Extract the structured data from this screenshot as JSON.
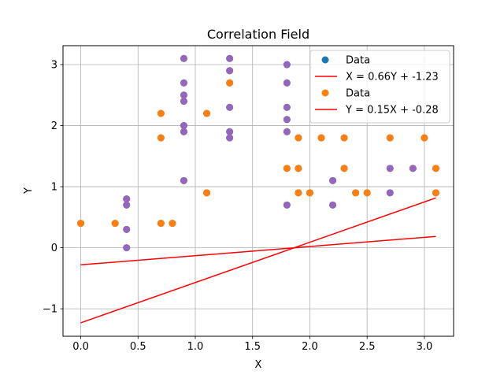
{
  "chart_data": {
    "type": "scatter",
    "title": "Correlation Field",
    "xlabel": "X",
    "ylabel": "Y",
    "xlim": [
      -0.155,
      3.255
    ],
    "ylim": [
      -1.45,
      3.31
    ],
    "xticks": [
      0.0,
      0.5,
      1.0,
      1.5,
      2.0,
      2.5,
      3.0
    ],
    "xtick_labels": [
      "0.0",
      "0.5",
      "1.0",
      "1.5",
      "2.0",
      "2.5",
      "3.0"
    ],
    "yticks": [
      -1,
      0,
      1,
      2,
      3
    ],
    "ytick_labels": [
      "−1",
      "0",
      "1",
      "2",
      "3"
    ],
    "grid": true,
    "legend_position": "upper right",
    "colors": {
      "series_blue": "#1f77b4",
      "series_orange": "#ff7f0e",
      "overlap_purple": "#9467bd",
      "fit_line": "#ff0000"
    },
    "series": [
      {
        "name": "Data",
        "kind": "scatter",
        "color": "#1f77b4",
        "points": [
          [
            0.0,
            0.4
          ],
          [
            0.3,
            0.4
          ],
          [
            0.4,
            0.0
          ],
          [
            0.4,
            0.3
          ],
          [
            0.4,
            0.7
          ],
          [
            0.4,
            0.8
          ],
          [
            0.7,
            0.4
          ],
          [
            0.7,
            1.8
          ],
          [
            0.7,
            2.2
          ],
          [
            0.8,
            0.4
          ],
          [
            0.9,
            1.1
          ],
          [
            0.9,
            1.9
          ],
          [
            0.9,
            2.0
          ],
          [
            0.9,
            2.4
          ],
          [
            0.9,
            2.5
          ],
          [
            0.9,
            2.7
          ],
          [
            0.9,
            3.1
          ],
          [
            1.1,
            0.9
          ],
          [
            1.1,
            2.2
          ],
          [
            1.3,
            1.8
          ],
          [
            1.3,
            1.9
          ],
          [
            1.3,
            2.3
          ],
          [
            1.3,
            2.7
          ],
          [
            1.3,
            2.9
          ],
          [
            1.3,
            3.1
          ],
          [
            1.8,
            0.7
          ],
          [
            1.8,
            1.3
          ],
          [
            1.8,
            1.9
          ],
          [
            1.8,
            2.1
          ],
          [
            1.8,
            2.3
          ],
          [
            1.8,
            2.7
          ],
          [
            1.8,
            3.0
          ],
          [
            1.9,
            0.9
          ],
          [
            1.9,
            1.3
          ],
          [
            1.9,
            1.8
          ],
          [
            2.0,
            0.9
          ],
          [
            2.1,
            1.8
          ],
          [
            2.2,
            0.7
          ],
          [
            2.2,
            1.1
          ],
          [
            2.3,
            1.3
          ],
          [
            2.3,
            1.8
          ],
          [
            2.4,
            0.9
          ],
          [
            2.5,
            0.9
          ],
          [
            2.7,
            0.9
          ],
          [
            2.7,
            1.3
          ],
          [
            2.7,
            1.8
          ],
          [
            2.9,
            1.3
          ],
          [
            3.0,
            1.8
          ],
          [
            3.1,
            0.9
          ],
          [
            3.1,
            1.3
          ]
        ]
      },
      {
        "name": "X = 0.66Y + -1.23",
        "kind": "line",
        "color": "#ff0000",
        "x": [
          0.0,
          3.1
        ],
        "y": [
          -1.23,
          0.816
        ]
      },
      {
        "name": "Data",
        "kind": "scatter",
        "color": "#ff7f0e",
        "points": [
          [
            0.0,
            0.4
          ],
          [
            0.3,
            0.4
          ],
          [
            0.7,
            0.4
          ],
          [
            0.7,
            1.8
          ],
          [
            0.7,
            2.2
          ],
          [
            0.8,
            0.4
          ],
          [
            1.1,
            0.9
          ],
          [
            1.1,
            2.2
          ],
          [
            1.3,
            2.7
          ],
          [
            1.3,
            2.9
          ],
          [
            1.8,
            1.3
          ],
          [
            1.9,
            0.9
          ],
          [
            1.9,
            1.3
          ],
          [
            1.9,
            1.8
          ],
          [
            2.0,
            0.9
          ],
          [
            2.1,
            1.8
          ],
          [
            2.3,
            1.3
          ],
          [
            2.3,
            1.8
          ],
          [
            2.4,
            0.9
          ],
          [
            2.5,
            0.9
          ],
          [
            2.7,
            1.8
          ],
          [
            2.9,
            1.3
          ],
          [
            3.0,
            1.8
          ],
          [
            3.1,
            0.9
          ],
          [
            3.1,
            1.3
          ]
        ]
      },
      {
        "name": "Y = 0.15X + -0.28",
        "kind": "line",
        "color": "#ff0000",
        "x": [
          0.0,
          3.1
        ],
        "y": [
          -0.28,
          0.185
        ]
      },
      {
        "name": "",
        "kind": "scatter",
        "legend": false,
        "color": "#9467bd",
        "points": [
          [
            0.4,
            0.0
          ],
          [
            0.4,
            0.3
          ],
          [
            0.4,
            0.7
          ],
          [
            0.4,
            0.8
          ],
          [
            0.9,
            1.1
          ],
          [
            0.9,
            1.9
          ],
          [
            0.9,
            2.0
          ],
          [
            0.9,
            2.4
          ],
          [
            0.9,
            2.5
          ],
          [
            0.9,
            2.7
          ],
          [
            0.9,
            3.1
          ],
          [
            1.3,
            1.8
          ],
          [
            1.3,
            1.9
          ],
          [
            1.3,
            2.3
          ],
          [
            1.3,
            2.9
          ],
          [
            1.3,
            3.1
          ],
          [
            1.8,
            0.7
          ],
          [
            1.8,
            1.9
          ],
          [
            1.8,
            2.1
          ],
          [
            1.8,
            2.3
          ],
          [
            1.8,
            2.7
          ],
          [
            1.8,
            3.0
          ],
          [
            2.2,
            0.7
          ],
          [
            2.2,
            1.1
          ],
          [
            2.7,
            0.9
          ],
          [
            2.7,
            1.3
          ],
          [
            2.9,
            1.3
          ]
        ]
      }
    ]
  }
}
